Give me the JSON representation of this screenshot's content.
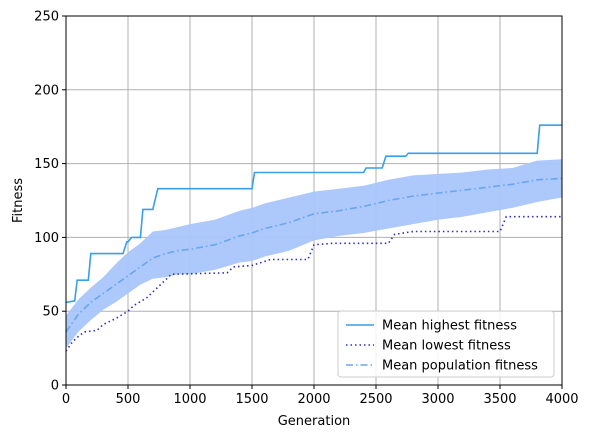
{
  "chart_data": {
    "type": "line",
    "title": "",
    "xlabel": "Generation",
    "ylabel": "Fitness",
    "xlim": [
      0,
      4000
    ],
    "ylim": [
      0,
      250
    ],
    "xticks": [
      0,
      500,
      1000,
      1500,
      2000,
      2500,
      3000,
      3500,
      4000
    ],
    "yticks": [
      0,
      50,
      100,
      150,
      200,
      250
    ],
    "grid": true,
    "legend_position": "lower-right",
    "series": [
      {
        "name": "Mean highest fitness",
        "style": "solid",
        "color": "#3a9ee8",
        "x": [
          0,
          70,
          90,
          180,
          200,
          460,
          490,
          500,
          530,
          600,
          620,
          700,
          740,
          1500,
          1520,
          2400,
          2420,
          2550,
          2580,
          2740,
          2760,
          3800,
          3820,
          4000
        ],
        "y": [
          56,
          57,
          71,
          71,
          89,
          89,
          97,
          97,
          100,
          100,
          119,
          119,
          133,
          133,
          144,
          144,
          147,
          147,
          155,
          155,
          157,
          157,
          176,
          176
        ]
      },
      {
        "name": "Mean lowest fitness",
        "style": "dotted",
        "color": "#2f2fb5",
        "x": [
          0,
          50,
          100,
          150,
          250,
          300,
          400,
          500,
          550,
          650,
          700,
          750,
          850,
          1300,
          1350,
          1500,
          1650,
          1950,
          2000,
          2150,
          2600,
          2650,
          2800,
          3500,
          3550,
          4000
        ],
        "y": [
          23,
          29,
          33,
          36,
          37,
          41,
          45,
          50,
          54,
          59,
          63,
          67,
          75,
          76,
          80,
          81,
          85,
          85,
          95,
          96,
          96,
          102,
          104,
          104,
          114,
          114
        ]
      },
      {
        "name": "Mean population fitness",
        "style": "dashdot",
        "color": "#6aa5ee",
        "x": [
          0,
          100,
          200,
          300,
          400,
          500,
          600,
          700,
          800,
          900,
          1000,
          1200,
          1400,
          1500,
          1600,
          1800,
          2000,
          2200,
          2400,
          2600,
          2800,
          3000,
          3200,
          3400,
          3600,
          3800,
          4000
        ],
        "y": [
          36,
          48,
          56,
          62,
          68,
          74,
          80,
          86,
          89,
          91,
          92,
          95,
          101,
          103,
          106,
          110,
          116,
          118,
          121,
          125,
          128,
          130,
          132,
          134,
          136,
          139,
          140
        ]
      }
    ],
    "band": {
      "color": "#a9c6fb",
      "x": [
        0,
        100,
        200,
        300,
        400,
        500,
        600,
        700,
        800,
        900,
        1000,
        1200,
        1400,
        1500,
        1600,
        1800,
        2000,
        2200,
        2400,
        2600,
        2800,
        3000,
        3200,
        3400,
        3600,
        3800,
        4000
      ],
      "upper": [
        47,
        58,
        66,
        73,
        82,
        90,
        96,
        104,
        105,
        107,
        109,
        112,
        118,
        120,
        123,
        127,
        131,
        133,
        135,
        139,
        142,
        143,
        144,
        146,
        147,
        152,
        153
      ],
      "lower": [
        25,
        36,
        44,
        51,
        56,
        62,
        68,
        72,
        73,
        75,
        75,
        78,
        83,
        84,
        87,
        91,
        98,
        101,
        103,
        106,
        109,
        112,
        114,
        117,
        120,
        124,
        127
      ]
    }
  }
}
